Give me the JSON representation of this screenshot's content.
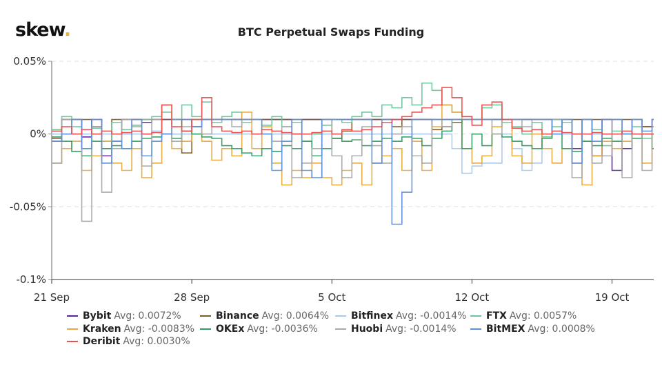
{
  "logo": "skew",
  "chart_data": {
    "type": "line",
    "step": true,
    "title": "BTC Perpetual Swaps Funding",
    "xlabel": "",
    "ylabel": "",
    "ylim": [
      -0.1,
      0.05
    ],
    "xlim": [
      "21 Sep 00:00",
      "21 Oct 02:00"
    ],
    "yticks": [
      {
        "v": 0.05,
        "label": "0.05%"
      },
      {
        "v": 0,
        "label": "0%"
      },
      {
        "v": -0.05,
        "label": "-0.05%"
      },
      {
        "v": -0.1,
        "label": "-0.1%"
      }
    ],
    "xticks": [
      "21 Sep",
      "28 Sep",
      "5 Oct",
      "12 Oct",
      "19 Oct"
    ],
    "grid": "horizontal dashed",
    "legend_position": "bottom",
    "x": [
      "21 Sep 00:00",
      "21 Sep 12:00",
      "22 Sep 00:00",
      "22 Sep 12:00",
      "23 Sep 00:00",
      "23 Sep 12:00",
      "24 Sep 00:00",
      "24 Sep 12:00",
      "25 Sep 00:00",
      "25 Sep 12:00",
      "26 Sep 00:00",
      "26 Sep 12:00",
      "27 Sep 00:00",
      "27 Sep 12:00",
      "28 Sep 00:00",
      "28 Sep 12:00",
      "29 Sep 00:00",
      "29 Sep 12:00",
      "30 Sep 00:00",
      "30 Sep 12:00",
      "1 Oct 00:00",
      "1 Oct 12:00",
      "2 Oct 00:00",
      "2 Oct 12:00",
      "3 Oct 00:00",
      "3 Oct 12:00",
      "4 Oct 00:00",
      "4 Oct 12:00",
      "5 Oct 00:00",
      "5 Oct 12:00",
      "6 Oct 00:00",
      "6 Oct 12:00",
      "7 Oct 00:00",
      "7 Oct 12:00",
      "8 Oct 00:00",
      "8 Oct 12:00",
      "9 Oct 00:00",
      "9 Oct 12:00",
      "10 Oct 00:00",
      "10 Oct 12:00",
      "11 Oct 00:00",
      "11 Oct 12:00",
      "12 Oct 00:00",
      "12 Oct 12:00",
      "13 Oct 00:00",
      "13 Oct 12:00",
      "14 Oct 00:00",
      "14 Oct 12:00",
      "15 Oct 00:00",
      "15 Oct 12:00",
      "16 Oct 00:00",
      "16 Oct 12:00",
      "17 Oct 00:00",
      "17 Oct 12:00",
      "18 Oct 00:00",
      "18 Oct 12:00",
      "19 Oct 00:00",
      "19 Oct 12:00",
      "20 Oct 00:00",
      "20 Oct 12:00",
      "21 Oct 00:00"
    ],
    "series": [
      {
        "name": "Bybit",
        "avg_label": "Avg: 0.0072%",
        "color": "#5b1fa8",
        "values": [
          -0.005,
          0.01,
          0.01,
          -0.002,
          0.01,
          -0.015,
          -0.005,
          0.01,
          0.01,
          0.008,
          0.01,
          0.01,
          0.01,
          0.01,
          0.005,
          0.01,
          0.01,
          0.01,
          0.01,
          0.01,
          0.01,
          0.01,
          0.01,
          0.01,
          0.0,
          0.01,
          0.01,
          0.01,
          0.01,
          0.01,
          0.01,
          0.01,
          0.01,
          0.01,
          0.01,
          0.01,
          0.01,
          0.01,
          0.01,
          0.01,
          0.01,
          0.01,
          0.01,
          0.01,
          0.01,
          0.01,
          0.01,
          0.01,
          0.01,
          0.01,
          0.01,
          0.01,
          -0.01,
          0.01,
          -0.015,
          0.01,
          -0.025,
          -0.01,
          0.01,
          0.005,
          0.01
        ]
      },
      {
        "name": "Binance",
        "avg_label": "Avg: 0.0064%",
        "color": "#7a5c28",
        "values": [
          -0.003,
          0.01,
          0.01,
          0.01,
          0.005,
          -0.01,
          0.01,
          0.01,
          0.01,
          0.01,
          0.01,
          0.01,
          0.01,
          -0.013,
          0.01,
          0.01,
          0.01,
          0.01,
          0.01,
          0.01,
          0.01,
          0.01,
          0.01,
          0.01,
          0.01,
          0.01,
          0.01,
          0.01,
          -0.003,
          0.002,
          0.01,
          0.01,
          0.01,
          0.01,
          0.005,
          0.01,
          0.01,
          0.01,
          0.003,
          0.005,
          0.008,
          0.01,
          0.01,
          0.01,
          0.01,
          0.01,
          0.01,
          0.01,
          0.01,
          0.01,
          0.01,
          0.01,
          0.01,
          0.01,
          0.01,
          0.01,
          0.01,
          0.01,
          0.01,
          0.005,
          0.005
        ]
      },
      {
        "name": "Bitfinex",
        "avg_label": "Avg: -0.0014%",
        "color": "#a9c8ec",
        "values": [
          0,
          0,
          0,
          0,
          0,
          0,
          0,
          0,
          0,
          0,
          0.002,
          0,
          0,
          0,
          0,
          0,
          0,
          0,
          0,
          0,
          0,
          0,
          0,
          0,
          0,
          0,
          0,
          0,
          0,
          0,
          0,
          0,
          0,
          0,
          0,
          0,
          0,
          0,
          0,
          0,
          -0.01,
          -0.027,
          -0.022,
          -0.02,
          -0.02,
          0.0,
          -0.01,
          -0.025,
          -0.02,
          0,
          0,
          0,
          0,
          0,
          0,
          0,
          0,
          0,
          0,
          0,
          0
        ]
      },
      {
        "name": "FTX",
        "avg_label": "Avg: 0.0057%",
        "color": "#6cc59a",
        "values": [
          0.003,
          0.012,
          0.005,
          -0.01,
          0.004,
          -0.005,
          0.008,
          0.003,
          0.006,
          0.01,
          0.012,
          0.015,
          0.01,
          0.02,
          0.012,
          0.022,
          0.008,
          0.012,
          0.015,
          0.008,
          0.01,
          0.006,
          0.012,
          0.005,
          0.008,
          -0.005,
          0.0,
          0.006,
          0.01,
          0.008,
          0.012,
          0.015,
          0.012,
          0.02,
          0.018,
          0.025,
          0.02,
          0.035,
          0.03,
          0.02,
          0.015,
          0.012,
          0.01,
          0.018,
          0.02,
          0.008,
          0.005,
          0.0,
          0.008,
          -0.002,
          0.005,
          0.008,
          0.0,
          -0.005,
          0.003,
          -0.008,
          0.002,
          0.0,
          0.005,
          -0.003,
          -0.01
        ]
      },
      {
        "name": "Kraken",
        "avg_label": "Avg: -0.0083%",
        "color": "#e9a93a",
        "values": [
          -0.02,
          -0.01,
          -0.005,
          -0.025,
          -0.015,
          -0.005,
          -0.02,
          -0.025,
          -0.01,
          -0.03,
          -0.02,
          0.02,
          -0.01,
          -0.005,
          0.01,
          -0.005,
          -0.018,
          -0.01,
          -0.015,
          0.015,
          -0.01,
          0.005,
          -0.02,
          -0.035,
          -0.025,
          -0.03,
          -0.02,
          -0.03,
          -0.035,
          -0.025,
          -0.02,
          -0.035,
          -0.02,
          -0.015,
          -0.01,
          -0.025,
          -0.005,
          -0.025,
          0.005,
          0.02,
          0.015,
          -0.01,
          -0.02,
          -0.015,
          0.005,
          0.01,
          -0.015,
          -0.02,
          0.0,
          -0.01,
          -0.02,
          -0.01,
          -0.02,
          -0.035,
          -0.015,
          -0.005,
          -0.01,
          -0.005,
          0.01,
          -0.02,
          0.005
        ]
      },
      {
        "name": "OKEx",
        "avg_label": "Avg: -0.0036%",
        "color": "#2e9e63",
        "values": [
          -0.002,
          -0.005,
          -0.012,
          -0.015,
          -0.005,
          -0.01,
          -0.008,
          -0.01,
          -0.005,
          -0.003,
          -0.002,
          0.0,
          -0.003,
          0.002,
          0.0,
          -0.002,
          -0.003,
          -0.008,
          -0.01,
          -0.013,
          -0.015,
          -0.01,
          -0.012,
          -0.008,
          -0.01,
          -0.005,
          -0.015,
          -0.01,
          -0.003,
          -0.005,
          -0.004,
          -0.008,
          -0.005,
          -0.003,
          -0.005,
          -0.002,
          -0.003,
          -0.008,
          -0.003,
          0.002,
          0.01,
          -0.01,
          0.0,
          -0.008,
          0.0,
          -0.002,
          -0.005,
          -0.008,
          -0.01,
          -0.003,
          0.01,
          -0.01,
          -0.012,
          -0.005,
          -0.008,
          -0.003,
          -0.005,
          0.0,
          -0.003,
          0.0,
          -0.01
        ]
      },
      {
        "name": "Huobi",
        "avg_label": "Avg: -0.0014%",
        "color": "#a8a8a8",
        "values": [
          -0.02,
          0.01,
          0.0,
          -0.06,
          0.005,
          -0.04,
          -0.01,
          0.01,
          0.005,
          -0.022,
          0.01,
          0.0,
          -0.005,
          0.005,
          0.01,
          0.0,
          0.01,
          0.01,
          0.005,
          0.01,
          0.01,
          0.0,
          -0.005,
          0.005,
          -0.03,
          -0.02,
          -0.01,
          0.01,
          -0.015,
          -0.03,
          -0.015,
          0.005,
          -0.008,
          -0.02,
          0.0,
          0.005,
          -0.015,
          -0.02,
          0.01,
          0.005,
          0.01,
          0.01,
          0.01,
          0.01,
          0.0,
          0.01,
          0.01,
          0.005,
          0.01,
          0.01,
          0.01,
          0.01,
          -0.03,
          0.01,
          -0.02,
          -0.015,
          0.01,
          -0.03,
          0.01,
          -0.025,
          0.005
        ]
      },
      {
        "name": "BitMEX",
        "avg_label": "Avg: 0.0008%",
        "color": "#5b8fe0",
        "values": [
          -0.005,
          0.0,
          0.01,
          -0.01,
          0.01,
          -0.02,
          -0.005,
          -0.01,
          0.01,
          -0.015,
          -0.005,
          0.0,
          0.01,
          0.01,
          0.005,
          0.01,
          0.01,
          0.01,
          0.01,
          0.01,
          0.01,
          0.0,
          -0.025,
          -0.005,
          0.01,
          -0.025,
          -0.03,
          0.01,
          0.01,
          0.01,
          0.01,
          0.01,
          -0.02,
          0.01,
          -0.062,
          -0.04,
          0.01,
          0.01,
          0.01,
          0.01,
          0.01,
          0.01,
          0.01,
          0.01,
          0.01,
          0.01,
          0.01,
          0.01,
          0.01,
          0.01,
          0.0,
          0.01,
          -0.02,
          0.01,
          -0.005,
          0.01,
          0.01,
          0.0,
          0.01,
          0.002,
          0.01
        ]
      },
      {
        "name": "Deribit",
        "avg_label": "Avg: 0.0030%",
        "color": "#ee4d4d",
        "values": [
          0.002,
          0.005,
          0.0,
          0.003,
          0.0,
          0.002,
          0.0,
          0.001,
          0.002,
          0.0,
          0.001,
          0.02,
          0.005,
          0.002,
          0.01,
          0.025,
          0.005,
          0.002,
          0.001,
          0.002,
          0.0,
          0.003,
          0.002,
          0.001,
          0.0,
          0.0,
          0.001,
          0.002,
          0.0,
          0.003,
          0.002,
          0.003,
          0.005,
          0.008,
          0.01,
          0.012,
          0.015,
          0.018,
          0.02,
          0.032,
          0.025,
          0.012,
          0.006,
          0.02,
          0.022,
          0.01,
          0.004,
          0.002,
          0.003,
          0.0,
          0.002,
          0.001,
          0.0,
          0.0,
          0.001,
          0.0,
          0.0,
          0.002,
          0.0,
          0.0,
          0.0
        ]
      }
    ]
  }
}
